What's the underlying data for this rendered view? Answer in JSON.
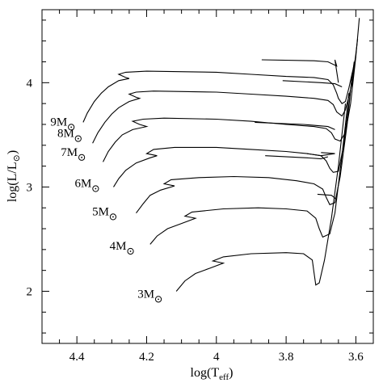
{
  "chart_data": {
    "type": "line",
    "xlabel": "log(T",
    "xlabel_sub": "eff",
    "xlabel_close": ")",
    "ylabel": "log(L/L",
    "ylabel_sun": "⊙",
    "ylabel_close": ")",
    "xlim": [
      4.5,
      3.55
    ],
    "ylim": [
      1.5,
      4.7
    ],
    "x_ticks": [
      4.4,
      4.2,
      4,
      3.8,
      3.6
    ],
    "x_tick_labels": [
      "4.4",
      "4.2",
      "4",
      "3.8",
      "3.6"
    ],
    "y_ticks": [
      2,
      3,
      4
    ],
    "y_tick_labels": [
      "2",
      "3",
      "4"
    ],
    "tracks": [
      {
        "label": "9M",
        "label_pos": [
          4.4,
          3.62
        ],
        "points": [
          [
            4.382,
            3.62
          ],
          [
            4.37,
            3.71
          ],
          [
            4.35,
            3.82
          ],
          [
            4.33,
            3.9
          ],
          [
            4.31,
            3.96
          ],
          [
            4.28,
            4.02
          ],
          [
            4.25,
            4.04
          ],
          [
            4.26,
            4.05
          ],
          [
            4.28,
            4.08
          ],
          [
            4.26,
            4.1
          ],
          [
            4.2,
            4.11
          ],
          [
            4.0,
            4.1
          ],
          [
            3.9,
            4.08
          ],
          [
            3.8,
            4.06
          ],
          [
            3.72,
            4.05
          ],
          [
            3.68,
            4.03
          ],
          [
            3.665,
            3.98
          ],
          [
            3.655,
            3.9
          ],
          [
            3.65,
            3.85
          ],
          [
            3.64,
            3.8
          ],
          [
            3.63,
            3.82
          ],
          [
            3.62,
            3.95
          ],
          [
            3.6,
            4.25
          ],
          [
            3.59,
            4.62
          ]
        ]
      },
      {
        "label": "8M",
        "label_pos": [
          4.38,
          3.51
        ],
        "points": [
          [
            4.355,
            3.42
          ],
          [
            4.34,
            3.52
          ],
          [
            4.32,
            3.62
          ],
          [
            4.3,
            3.7
          ],
          [
            4.28,
            3.76
          ],
          [
            4.25,
            3.82
          ],
          [
            4.22,
            3.85
          ],
          [
            4.23,
            3.86
          ],
          [
            4.25,
            3.89
          ],
          [
            4.23,
            3.91
          ],
          [
            4.18,
            3.92
          ],
          [
            4.0,
            3.91
          ],
          [
            3.9,
            3.89
          ],
          [
            3.8,
            3.87
          ],
          [
            3.72,
            3.85
          ],
          [
            3.68,
            3.83
          ],
          [
            3.665,
            3.79
          ],
          [
            3.655,
            3.72
          ],
          [
            3.64,
            3.68
          ],
          [
            3.63,
            3.74
          ],
          [
            3.61,
            4.0
          ],
          [
            3.595,
            4.42
          ]
        ]
      },
      {
        "label": "7M",
        "label_pos": [
          4.37,
          3.33
        ],
        "points": [
          [
            4.325,
            3.24
          ],
          [
            4.31,
            3.34
          ],
          [
            4.29,
            3.43
          ],
          [
            4.27,
            3.5
          ],
          [
            4.24,
            3.55
          ],
          [
            4.2,
            3.58
          ],
          [
            4.22,
            3.6
          ],
          [
            4.24,
            3.63
          ],
          [
            4.21,
            3.65
          ],
          [
            4.15,
            3.66
          ],
          [
            4.0,
            3.65
          ],
          [
            3.9,
            3.63
          ],
          [
            3.8,
            3.6
          ],
          [
            3.72,
            3.58
          ],
          [
            3.685,
            3.56
          ],
          [
            3.67,
            3.52
          ],
          [
            3.66,
            3.46
          ],
          [
            3.645,
            3.44
          ],
          [
            3.63,
            3.52
          ],
          [
            3.615,
            3.8
          ],
          [
            3.6,
            4.25
          ]
        ]
      },
      {
        "label": "6M",
        "label_pos": [
          4.33,
          3.03
        ],
        "points": [
          [
            4.295,
            3.0
          ],
          [
            4.28,
            3.08
          ],
          [
            4.26,
            3.16
          ],
          [
            4.23,
            3.23
          ],
          [
            4.19,
            3.28
          ],
          [
            4.17,
            3.3
          ],
          [
            4.2,
            3.32
          ],
          [
            4.18,
            3.36
          ],
          [
            4.12,
            3.38
          ],
          [
            4.0,
            3.38
          ],
          [
            3.9,
            3.36
          ],
          [
            3.8,
            3.34
          ],
          [
            3.74,
            3.32
          ],
          [
            3.7,
            3.3
          ],
          [
            3.685,
            3.25
          ],
          [
            3.675,
            3.18
          ],
          [
            3.665,
            3.14
          ],
          [
            3.65,
            3.15
          ],
          [
            3.635,
            3.4
          ],
          [
            3.62,
            3.8
          ],
          [
            3.605,
            4.2
          ]
        ]
      },
      {
        "label": "5M",
        "label_pos": [
          4.28,
          2.76
        ],
        "points": [
          [
            4.23,
            2.75
          ],
          [
            4.21,
            2.84
          ],
          [
            4.19,
            2.92
          ],
          [
            4.16,
            2.97
          ],
          [
            4.12,
            3.01
          ],
          [
            4.15,
            3.03
          ],
          [
            4.13,
            3.07
          ],
          [
            4.05,
            3.09
          ],
          [
            3.95,
            3.1
          ],
          [
            3.85,
            3.09
          ],
          [
            3.77,
            3.06
          ],
          [
            3.72,
            3.03
          ],
          [
            3.695,
            2.98
          ],
          [
            3.685,
            2.9
          ],
          [
            3.675,
            2.83
          ],
          [
            3.66,
            2.85
          ],
          [
            3.645,
            3.1
          ],
          [
            3.625,
            3.6
          ],
          [
            3.61,
            4.1
          ]
        ]
      },
      {
        "label": "4M",
        "label_pos": [
          4.23,
          2.43
        ],
        "points": [
          [
            4.19,
            2.45
          ],
          [
            4.17,
            2.53
          ],
          [
            4.14,
            2.6
          ],
          [
            4.1,
            2.65
          ],
          [
            4.06,
            2.7
          ],
          [
            4.09,
            2.72
          ],
          [
            4.07,
            2.76
          ],
          [
            3.98,
            2.79
          ],
          [
            3.88,
            2.8
          ],
          [
            3.8,
            2.79
          ],
          [
            3.74,
            2.77
          ],
          [
            3.715,
            2.7
          ],
          [
            3.705,
            2.6
          ],
          [
            3.695,
            2.52
          ],
          [
            3.675,
            2.55
          ],
          [
            3.66,
            2.75
          ],
          [
            3.64,
            3.3
          ],
          [
            3.62,
            3.9
          ]
        ]
      },
      {
        "label": "3M",
        "label_pos": [
          4.15,
          1.97
        ],
        "points": [
          [
            4.115,
            2.0
          ],
          [
            4.09,
            2.1
          ],
          [
            4.06,
            2.17
          ],
          [
            4.02,
            2.22
          ],
          [
            3.98,
            2.27
          ],
          [
            4.01,
            2.29
          ],
          [
            3.98,
            2.33
          ],
          [
            3.9,
            2.36
          ],
          [
            3.8,
            2.37
          ],
          [
            3.75,
            2.36
          ],
          [
            3.725,
            2.3
          ],
          [
            3.72,
            2.18
          ],
          [
            3.715,
            2.06
          ],
          [
            3.705,
            2.08
          ],
          [
            3.69,
            2.3
          ],
          [
            3.67,
            2.7
          ],
          [
            3.65,
            3.2
          ],
          [
            3.63,
            3.8
          ]
        ]
      }
    ],
    "branches": [
      [
        [
          3.87,
          4.22
        ],
        [
          3.72,
          4.21
        ],
        [
          3.68,
          4.2
        ],
        [
          3.655,
          4.16
        ],
        [
          3.66,
          4.22
        ],
        [
          3.65,
          4.0
        ]
      ],
      [
        [
          3.81,
          4.02
        ],
        [
          3.7,
          4.0
        ],
        [
          3.66,
          3.99
        ],
        [
          3.64,
          3.96
        ]
      ],
      [
        [
          3.89,
          3.62
        ],
        [
          3.75,
          3.6
        ],
        [
          3.68,
          3.58
        ],
        [
          3.66,
          3.55
        ]
      ],
      [
        [
          3.86,
          3.3
        ],
        [
          3.74,
          3.28
        ],
        [
          3.7,
          3.27
        ],
        [
          3.68,
          3.29
        ]
      ],
      [
        [
          3.74,
          3.32
        ],
        [
          3.7,
          3.3
        ],
        [
          3.66,
          3.32
        ],
        [
          3.7,
          3.33
        ]
      ],
      [
        [
          3.71,
          2.93
        ],
        [
          3.67,
          2.92
        ],
        [
          3.655,
          2.88
        ]
      ]
    ]
  }
}
